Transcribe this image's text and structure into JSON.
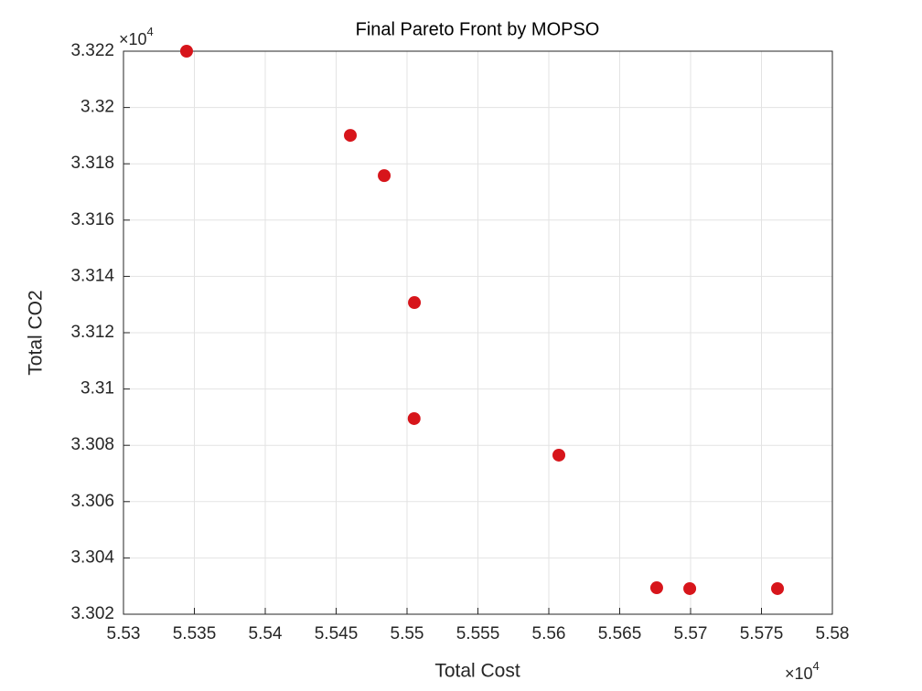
{
  "chart_data": {
    "type": "scatter",
    "title": "Final Pareto Front by MOPSO",
    "x_label": "Total Cost",
    "y_label": "Total CO2",
    "x_multiplier": {
      "base": "×10",
      "exponent": "4"
    },
    "y_multiplier": {
      "base": "×10",
      "exponent": "4"
    },
    "color": "#d7151b",
    "x": [
      5.53445,
      5.546,
      5.54839,
      5.55052,
      5.5505,
      5.56071,
      5.56761,
      5.56994,
      5.57613
    ],
    "values": [
      3.322,
      3.31901,
      3.31758,
      3.31307,
      3.30895,
      3.30765,
      3.30294,
      3.30291,
      3.30291
    ],
    "xlim": [
      5.53,
      5.58
    ],
    "xticks": [
      5.53,
      5.535,
      5.54,
      5.545,
      5.55,
      5.555,
      5.56,
      5.565,
      5.57,
      5.575,
      5.58
    ],
    "ylim": [
      3.302,
      3.322
    ],
    "yticks": [
      3.302,
      3.304,
      3.306,
      3.308,
      3.31,
      3.312,
      3.314,
      3.316,
      3.318,
      3.32,
      3.322
    ],
    "grid": true
  }
}
